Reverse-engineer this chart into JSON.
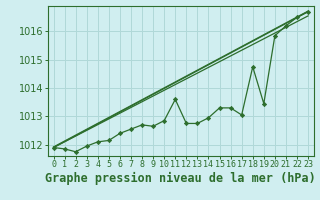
{
  "title": "Graphe pression niveau de la mer (hPa)",
  "background_color": "#d0eef0",
  "grid_color": "#b0d8d8",
  "line_color": "#2d6e2d",
  "x_labels": [
    "0",
    "1",
    "2",
    "3",
    "4",
    "5",
    "6",
    "7",
    "8",
    "9",
    "10",
    "11",
    "12",
    "13",
    "14",
    "15",
    "16",
    "17",
    "18",
    "19",
    "20",
    "21",
    "22",
    "23"
  ],
  "xlim": [
    -0.5,
    23.5
  ],
  "ylim": [
    1011.6,
    1016.9
  ],
  "yticks": [
    1012,
    1013,
    1014,
    1015,
    1016
  ],
  "data_y": [
    1011.9,
    1011.85,
    1011.75,
    1011.95,
    1012.1,
    1012.15,
    1012.4,
    1012.55,
    1012.7,
    1012.65,
    1012.85,
    1013.6,
    1012.75,
    1012.75,
    1012.95,
    1013.3,
    1013.3,
    1013.05,
    1014.75,
    1013.45,
    1015.85,
    1016.2,
    1016.5,
    1016.7
  ],
  "trend1_x": [
    0,
    23
  ],
  "trend1_y": [
    1011.9,
    1016.7
  ],
  "trend2_x": [
    0,
    23
  ],
  "trend2_y": [
    1011.9,
    1016.55
  ],
  "trend3_x": [
    0,
    23
  ],
  "trend3_y": [
    1011.92,
    1016.72
  ],
  "title_fontsize": 8.5,
  "tick_fontsize": 7,
  "ylabel_fontsize": 7
}
